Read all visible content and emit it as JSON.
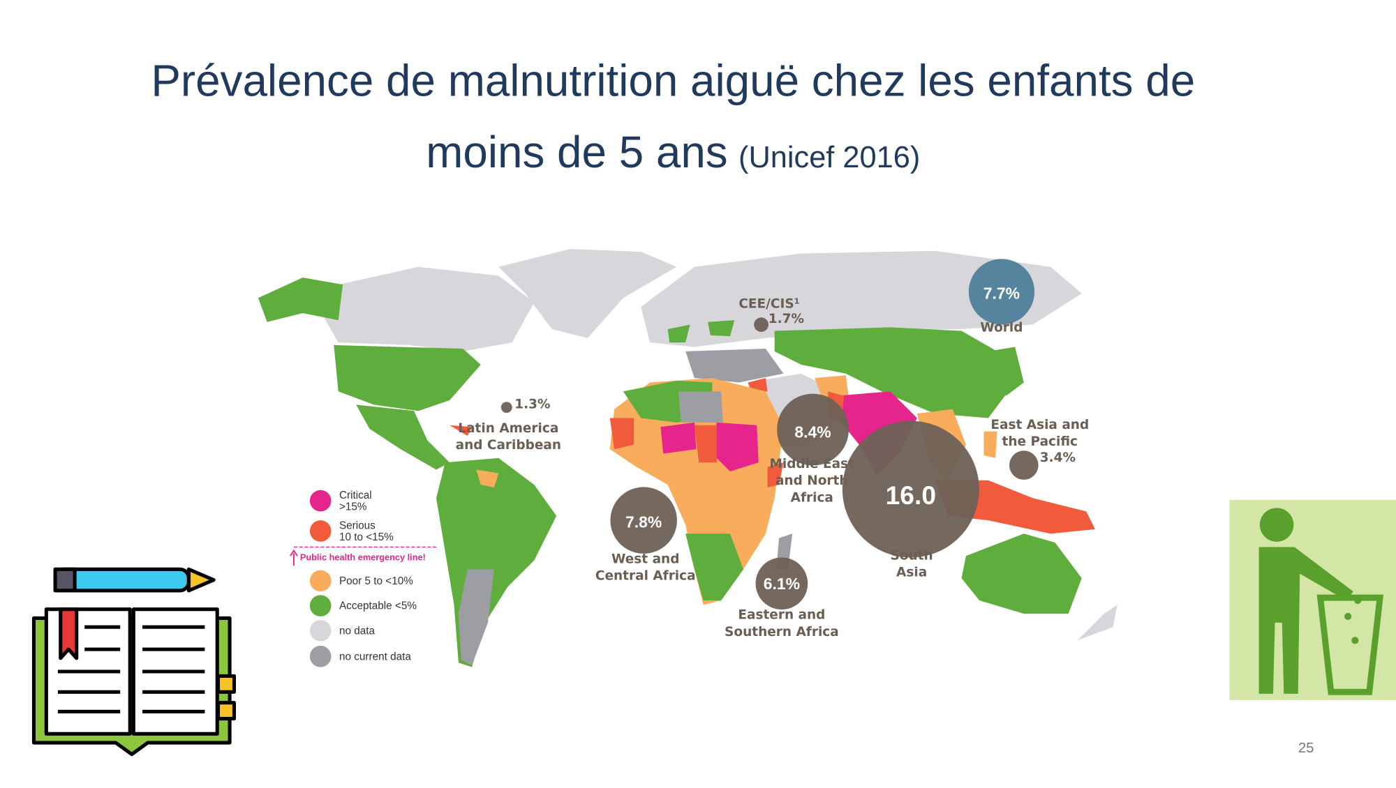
{
  "header": {
    "title": [
      "Prévalence de malnutrition aiguë chez les enfants de",
      "moins de 5 ans"
    ],
    "source": "(Unicef 2016)"
  },
  "map": {
    "regions": [
      {
        "name": [
          "World"
        ],
        "value": 7.7,
        "value_label": "7.7%"
      },
      {
        "name": [
          "CEE/CIS¹"
        ],
        "value": 1.7,
        "value_label": "1.7%"
      },
      {
        "name": [
          "Latin America",
          "and Caribbean"
        ],
        "value": 1.3,
        "value_label": "1.3%"
      },
      {
        "name": [
          "Middle East",
          "and North",
          "Africa"
        ],
        "value": 8.4,
        "value_label": "8.4%"
      },
      {
        "name": [
          "East Asia and",
          "the Pacific"
        ],
        "value": 3.4,
        "value_label": "3.4%"
      },
      {
        "name": [
          "South",
          "Asia"
        ],
        "value": 16.0,
        "value_label": "16.0"
      },
      {
        "name": [
          "West and",
          "Central Africa"
        ],
        "value": 7.8,
        "value_label": "7.8%"
      },
      {
        "name": [
          "Eastern and",
          "Southern Africa"
        ],
        "value": 6.1,
        "value_label": "6.1%"
      }
    ],
    "legend": {
      "items": [
        {
          "lines": [
            "Critical",
            ">15%"
          ],
          "color": "#e6258c"
        },
        {
          "lines": [
            "Serious",
            "10 to <15%"
          ],
          "color": "#f15a3b"
        },
        {
          "lines": [
            "Poor 5 to <10%"
          ],
          "color": "#f9ad5c"
        },
        {
          "lines": [
            "Acceptable <5%"
          ],
          "color": "#5fad3c"
        },
        {
          "lines": [
            "no data"
          ],
          "color": "#d7d7db"
        },
        {
          "lines": [
            "no current data"
          ],
          "color": "#9d9ea3"
        }
      ],
      "emergency_line": "Public health emergency line!"
    }
  },
  "footer": {
    "page_number": "25"
  }
}
